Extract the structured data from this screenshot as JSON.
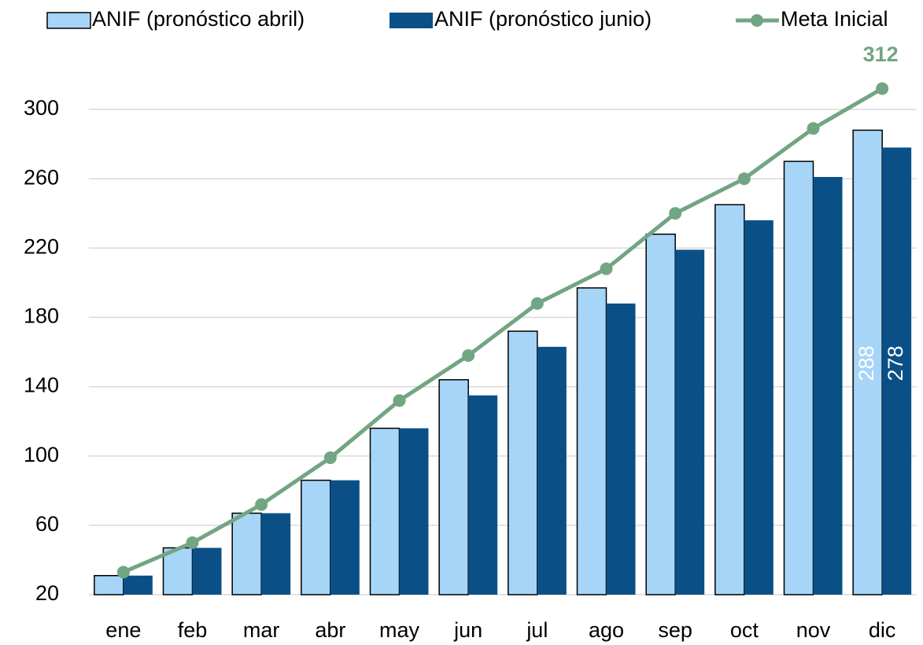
{
  "chart_data": {
    "type": "bar",
    "categories": [
      "ene",
      "feb",
      "mar",
      "abr",
      "may",
      "jun",
      "jul",
      "ago",
      "sep",
      "oct",
      "nov",
      "dic"
    ],
    "series": [
      {
        "name": "ANIF (pronóstico abril)",
        "type": "bar",
        "color": "#a6d5f7",
        "edgecolor": "#000000",
        "values": [
          31,
          47,
          67,
          86,
          116,
          144,
          172,
          197,
          228,
          245,
          270,
          288
        ],
        "value_labels": [
          null,
          null,
          null,
          null,
          null,
          null,
          null,
          null,
          null,
          null,
          null,
          "288"
        ]
      },
      {
        "name": "ANIF (pronóstico junio)",
        "type": "bar",
        "color": "#0a5086",
        "values": [
          31,
          47,
          67,
          86,
          116,
          135,
          163,
          188,
          219,
          236,
          261,
          278
        ],
        "value_labels": [
          null,
          null,
          null,
          null,
          null,
          null,
          null,
          null,
          null,
          null,
          null,
          "278"
        ]
      },
      {
        "name": "Meta Inicial",
        "type": "line",
        "color": "#72a583",
        "values": [
          33,
          50,
          72,
          99,
          132,
          158,
          188,
          208,
          240,
          260,
          289,
          312
        ],
        "value_labels": [
          null,
          null,
          null,
          null,
          null,
          null,
          null,
          null,
          null,
          null,
          null,
          "312"
        ]
      }
    ],
    "ylim": [
      20,
      320
    ],
    "yticks": [
      20,
      60,
      100,
      140,
      180,
      220,
      260,
      300
    ],
    "grid": true,
    "legend": "top"
  }
}
